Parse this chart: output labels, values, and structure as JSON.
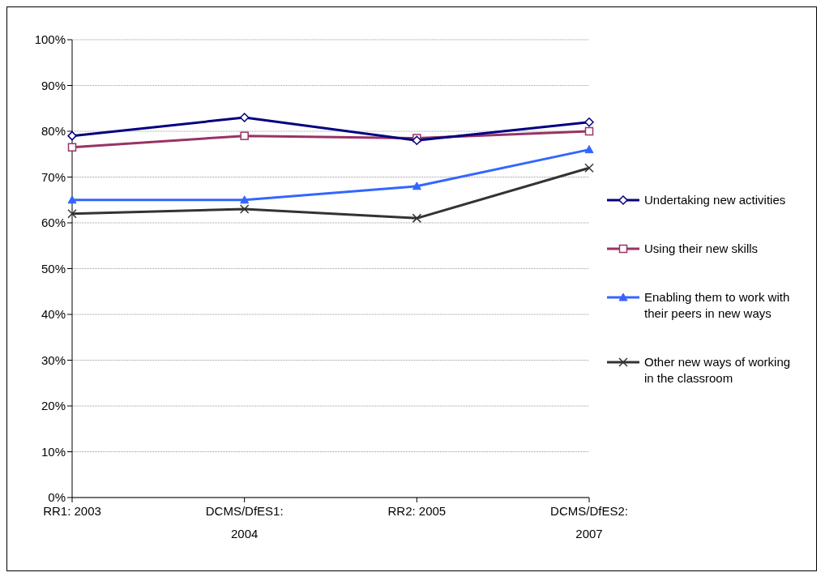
{
  "chart_data": {
    "type": "line",
    "categories": [
      "RR1: 2003",
      "DCMS/DfES1: 2004",
      "RR2: 2005",
      "DCMS/DfES2: 2007"
    ],
    "series": [
      {
        "name": "Undertaking new activities",
        "color": "#000080",
        "marker": "diamond",
        "values": [
          79,
          83,
          78,
          82
        ]
      },
      {
        "name": "Using their new skills",
        "color": "#993366",
        "marker": "square",
        "values": [
          76.5,
          79,
          78.5,
          80
        ]
      },
      {
        "name": "Enabling them to work with their peers in new ways",
        "color": "#3366ff",
        "marker": "triangle",
        "values": [
          65,
          65,
          68,
          76
        ]
      },
      {
        "name": "Other new ways of working in the classroom",
        "color": "#333333",
        "marker": "cross",
        "values": [
          62,
          63,
          61,
          72
        ]
      }
    ],
    "ylim": [
      0,
      100
    ],
    "yticks": [
      {
        "value": 0,
        "label": "0%"
      },
      {
        "value": 10,
        "label": "10%"
      },
      {
        "value": 20,
        "label": "20%"
      },
      {
        "value": 30,
        "label": "30%"
      },
      {
        "value": 40,
        "label": "40%"
      },
      {
        "value": 50,
        "label": "50%"
      },
      {
        "value": 60,
        "label": "60%"
      },
      {
        "value": 70,
        "label": "70%"
      },
      {
        "value": 80,
        "label": "80%"
      },
      {
        "value": 90,
        "label": "90%"
      },
      {
        "value": 100,
        "label": "100%"
      }
    ],
    "grid": "y",
    "legend": "right"
  }
}
